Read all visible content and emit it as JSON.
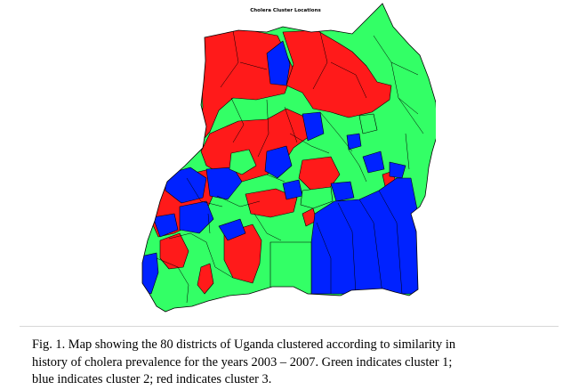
{
  "figure": {
    "map_title": "Cholera Cluster Locations",
    "caption_lines": [
      "Fig. 1.  Map showing the 80 districts of Uganda clustered according to similarity in",
      "history of cholera prevalence for the years 2003 – 2007.  Green indicates cluster 1;",
      "blue indicates cluster 2; red indicates cluster 3."
    ]
  },
  "legend_colors": {
    "cluster_1": "#33ff66",
    "cluster_2": "#0022ff",
    "cluster_3": "#ff1a1a"
  }
}
